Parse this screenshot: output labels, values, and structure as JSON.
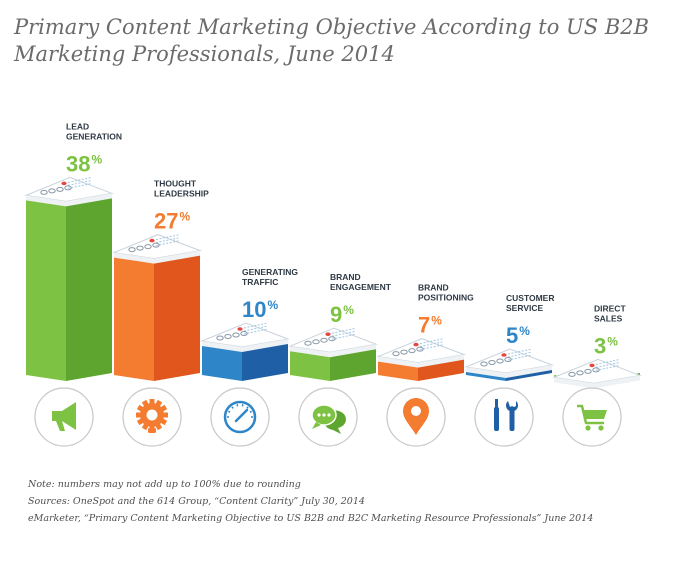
{
  "title": "Primary Content Marketing Objective According to US B2B Marketing Professionals, June 2014",
  "colors": {
    "green": "#7dc242",
    "orange": "#f47c30",
    "blue": "#2e86c8"
  },
  "chart_data": {
    "type": "bar",
    "title": "Primary Content Marketing Objective According to US B2B Marketing Professionals, June 2014",
    "categories": [
      "Lead Generation",
      "Thought Leadership",
      "Generating Traffic",
      "Brand Engagement",
      "Brand Positioning",
      "Customer Service",
      "Direct Sales"
    ],
    "label_lines": [
      [
        "LEAD",
        "GENERATION"
      ],
      [
        "THOUGHT",
        "LEADERSHIP"
      ],
      [
        "GENERATING",
        "TRAFFIC"
      ],
      [
        "BRAND",
        "ENGAGEMENT"
      ],
      [
        "BRAND",
        "POSITIONING"
      ],
      [
        "CUSTOMER",
        "SERVICE"
      ],
      [
        "DIRECT",
        "SALES"
      ]
    ],
    "values": [
      38,
      27,
      10,
      9,
      7,
      5,
      3
    ],
    "unit": "%",
    "bar_colors": [
      "green",
      "orange",
      "blue",
      "green",
      "orange",
      "blue",
      "green"
    ],
    "icons": [
      "megaphone-icon",
      "gear-bulb-icon",
      "speedometer-icon",
      "chat-bubbles-icon",
      "location-pin-icon",
      "tools-icon",
      "shopping-cart-icon"
    ],
    "grid": false,
    "legend": "none"
  },
  "notes": [
    "Note: numbers may not add up to 100% due to rounding",
    "Sources: OneSpot and the 614 Group, “Content Clarity” July 30, 2014",
    "eMarketer, “Primary Content Marketing Objective to US B2B and B2C Marketing Resource Professionals” June 2014"
  ]
}
